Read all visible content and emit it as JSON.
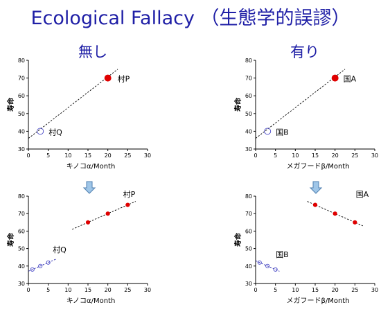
{
  "title": "Ecological Fallacy （生態学的誤謬）",
  "columns": {
    "left": "無し",
    "right": "有り"
  },
  "colors": {
    "title": "#1f1fa6",
    "red": "#e00000",
    "blue": "#4a4ac8"
  },
  "chart_data": [
    {
      "type": "scatter",
      "id": "top-left",
      "xlabel": "キノコα/Month",
      "ylabel": "寿命",
      "xlim": [
        0,
        30
      ],
      "ylim": [
        30,
        80
      ],
      "xticks": [
        0,
        5,
        10,
        15,
        20,
        25,
        30
      ],
      "yticks": [
        30,
        40,
        50,
        60,
        70,
        80
      ],
      "series": [
        {
          "name": "村P",
          "color": "red",
          "style": "filled",
          "size": "large",
          "points": [
            [
              20,
              70
            ]
          ]
        },
        {
          "name": "村Q",
          "color": "blue",
          "style": "open",
          "size": "large",
          "points": [
            [
              3,
              40
            ]
          ]
        }
      ],
      "trendlines": [
        {
          "color": "black",
          "from": [
            0,
            36
          ],
          "to": [
            22.5,
            75
          ]
        }
      ]
    },
    {
      "type": "scatter",
      "id": "top-right",
      "xlabel": "メガフードβ/Month",
      "ylabel": "寿命",
      "xlim": [
        0,
        30
      ],
      "ylim": [
        30,
        80
      ],
      "xticks": [
        0,
        5,
        10,
        15,
        20,
        25,
        30
      ],
      "yticks": [
        30,
        40,
        50,
        60,
        70,
        80
      ],
      "series": [
        {
          "name": "国A",
          "color": "red",
          "style": "filled",
          "size": "large",
          "points": [
            [
              20,
              70
            ]
          ]
        },
        {
          "name": "国B",
          "color": "blue",
          "style": "open",
          "size": "large",
          "points": [
            [
              3,
              40
            ]
          ]
        }
      ],
      "trendlines": [
        {
          "color": "black",
          "from": [
            0,
            36
          ],
          "to": [
            22.5,
            75
          ]
        }
      ]
    },
    {
      "type": "scatter",
      "id": "bottom-left",
      "xlabel": "キノコα/Month",
      "ylabel": "寿命",
      "xlim": [
        0,
        30
      ],
      "ylim": [
        30,
        80
      ],
      "xticks": [
        0,
        5,
        10,
        15,
        20,
        25,
        30
      ],
      "yticks": [
        30,
        40,
        50,
        60,
        70,
        80
      ],
      "series": [
        {
          "name": "村P",
          "color": "red",
          "style": "filled",
          "size": "small",
          "points": [
            [
              15,
              65
            ],
            [
              20,
              70
            ],
            [
              25,
              75
            ]
          ]
        },
        {
          "name": "村Q",
          "color": "blue",
          "style": "open",
          "size": "small",
          "points": [
            [
              1,
              38
            ],
            [
              3,
              40
            ],
            [
              5,
              42
            ]
          ]
        }
      ],
      "trendlines": [
        {
          "color": "black",
          "from": [
            11,
            61
          ],
          "to": [
            27,
            77
          ]
        },
        {
          "color": "blue",
          "from": [
            0,
            37
          ],
          "to": [
            7,
            44
          ]
        }
      ]
    },
    {
      "type": "scatter",
      "id": "bottom-right",
      "xlabel": "メガフードβ/Month",
      "ylabel": "寿命",
      "xlim": [
        0,
        30
      ],
      "ylim": [
        30,
        80
      ],
      "xticks": [
        0,
        5,
        10,
        15,
        20,
        25,
        30
      ],
      "yticks": [
        30,
        40,
        50,
        60,
        70,
        80
      ],
      "series": [
        {
          "name": "国A",
          "color": "red",
          "style": "filled",
          "size": "small",
          "points": [
            [
              15,
              75
            ],
            [
              20,
              70
            ],
            [
              25,
              65
            ]
          ]
        },
        {
          "name": "国B",
          "color": "blue",
          "style": "open",
          "size": "small",
          "points": [
            [
              1,
              42
            ],
            [
              3,
              40
            ],
            [
              5,
              38
            ]
          ]
        }
      ],
      "trendlines": [
        {
          "color": "black",
          "from": [
            13,
            77
          ],
          "to": [
            27,
            63
          ]
        },
        {
          "color": "blue",
          "from": [
            0,
            43
          ],
          "to": [
            6,
            37
          ]
        }
      ]
    }
  ]
}
